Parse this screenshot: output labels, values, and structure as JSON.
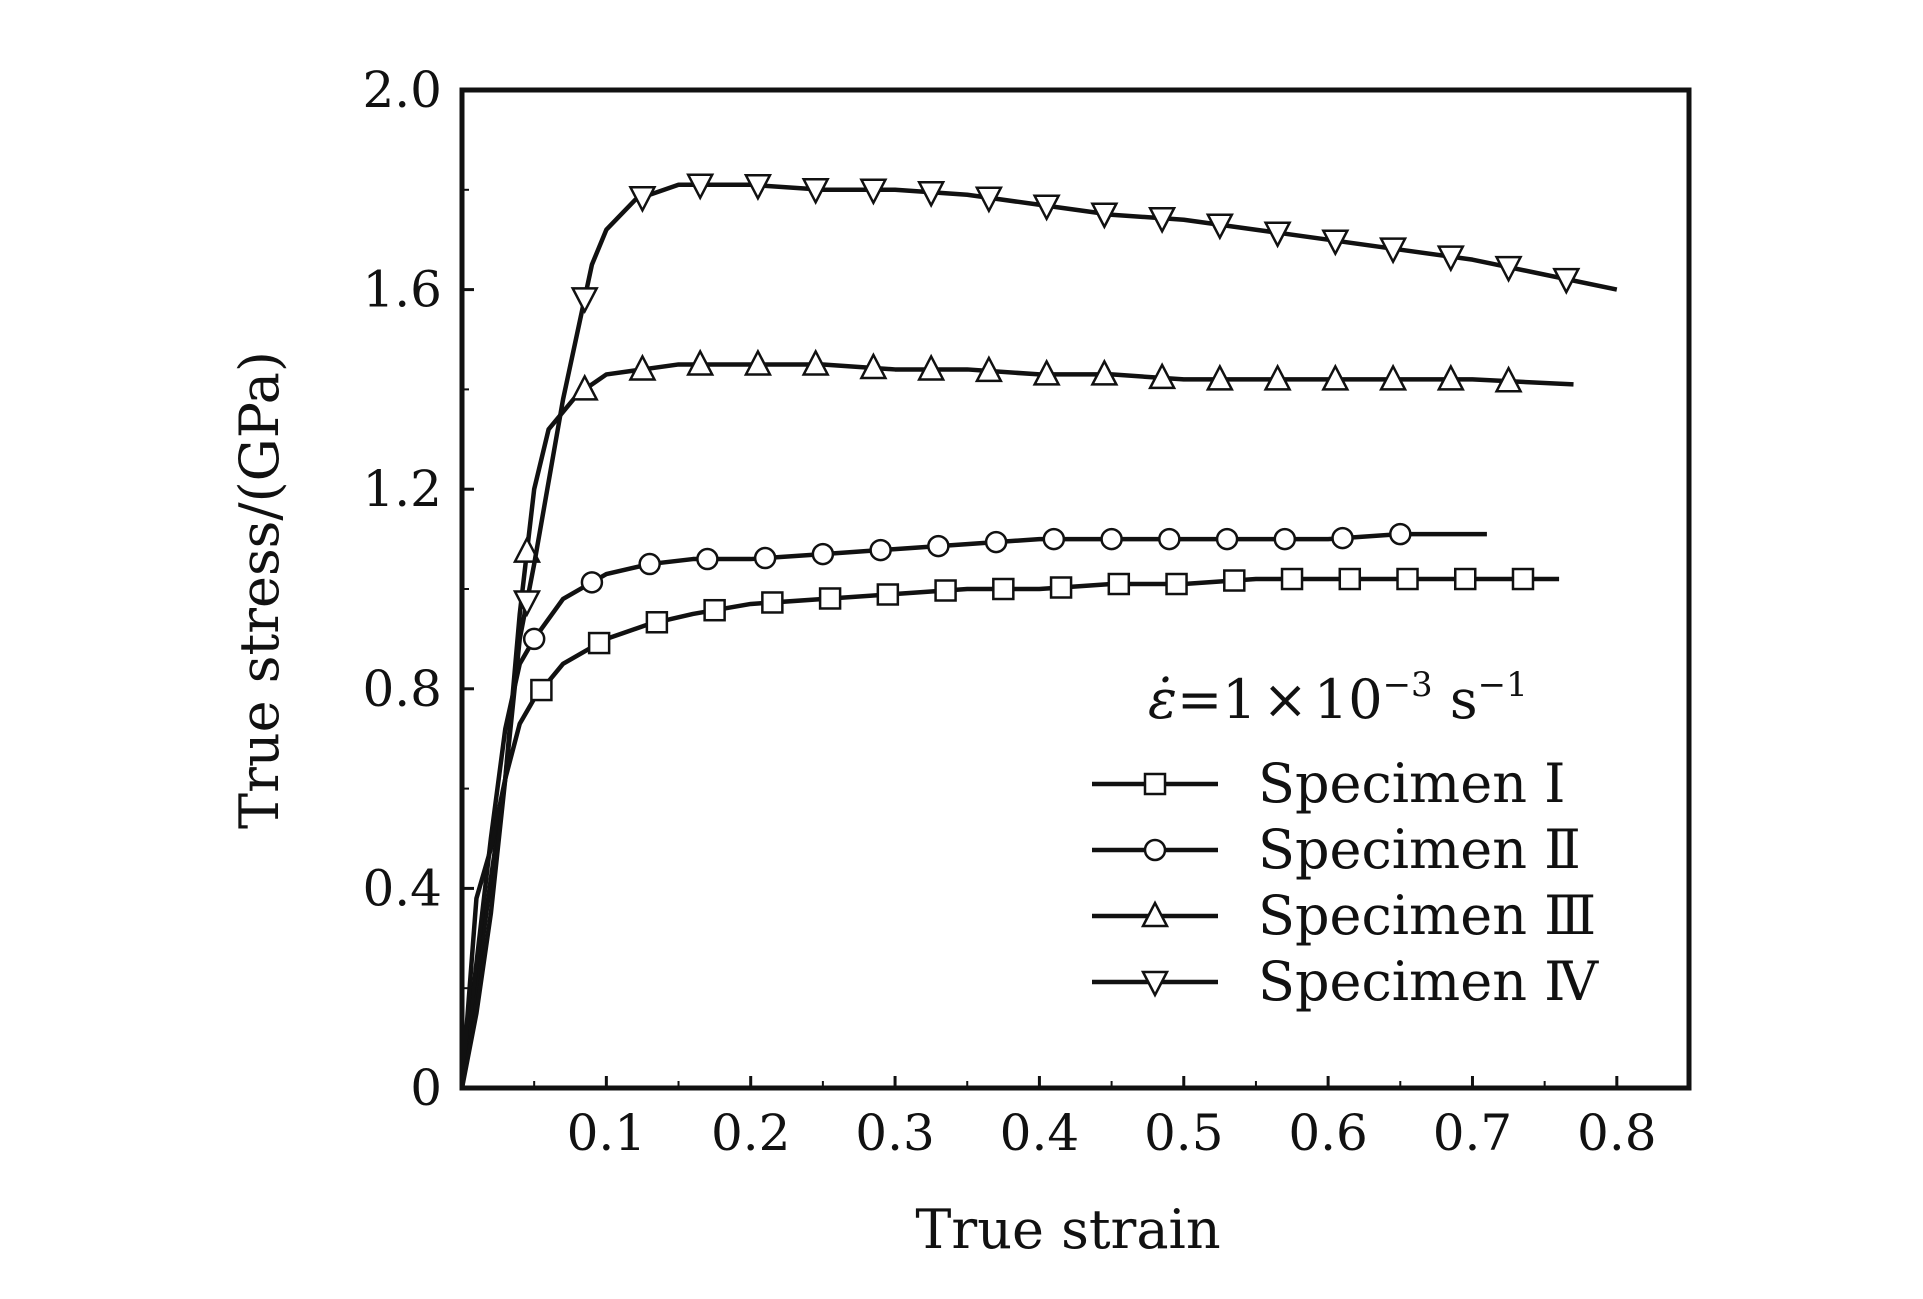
{
  "chart_data": {
    "type": "line",
    "title": "",
    "xlabel": "True strain",
    "ylabel": "True stress/(GPa)",
    "xlim": [
      0,
      0.85
    ],
    "ylim": [
      0,
      2.0
    ],
    "x_ticks": [
      0.1,
      0.2,
      0.3,
      0.4,
      0.5,
      0.6,
      0.7,
      0.8
    ],
    "x_tick_labels": [
      "0.1",
      "0.2",
      "0.3",
      "0.4",
      "0.5",
      "0.6",
      "0.7",
      "0.8"
    ],
    "y_ticks": [
      0,
      0.4,
      0.8,
      1.2,
      1.6,
      2.0
    ],
    "y_tick_labels": [
      "0",
      "0.4",
      "0.8",
      "1.2",
      "1.6",
      "2.0"
    ],
    "grid": false,
    "legend_position": "bottom-right",
    "annotation": {
      "symbol": "ε̇",
      "equals": "=1",
      "times": "×",
      "base": "10",
      "exp1": "−3",
      "unit": " s",
      "exp2": "−1"
    },
    "series": [
      {
        "name": "Specimen Ⅰ",
        "marker": "square",
        "x": [
          0,
          0.01,
          0.02,
          0.03,
          0.04,
          0.05,
          0.07,
          0.1,
          0.13,
          0.16,
          0.2,
          0.25,
          0.3,
          0.35,
          0.4,
          0.45,
          0.5,
          0.55,
          0.6,
          0.65,
          0.7,
          0.76
        ],
        "y": [
          0,
          0.2,
          0.42,
          0.62,
          0.73,
          0.78,
          0.85,
          0.9,
          0.93,
          0.95,
          0.97,
          0.98,
          0.99,
          1.0,
          1.0,
          1.01,
          1.01,
          1.02,
          1.02,
          1.02,
          1.02,
          1.02
        ]
      },
      {
        "name": "Specimen Ⅱ",
        "marker": "circle",
        "x": [
          0,
          0.01,
          0.02,
          0.03,
          0.04,
          0.05,
          0.07,
          0.1,
          0.13,
          0.16,
          0.2,
          0.25,
          0.3,
          0.35,
          0.4,
          0.45,
          0.5,
          0.55,
          0.6,
          0.65,
          0.71
        ],
        "y": [
          0,
          0.25,
          0.5,
          0.72,
          0.85,
          0.9,
          0.98,
          1.03,
          1.05,
          1.06,
          1.06,
          1.07,
          1.08,
          1.09,
          1.1,
          1.1,
          1.1,
          1.1,
          1.1,
          1.11,
          1.11
        ]
      },
      {
        "name": "Specimen Ⅲ",
        "marker": "triangle-up",
        "x": [
          0,
          0.01,
          0.02,
          0.03,
          0.04,
          0.05,
          0.06,
          0.08,
          0.1,
          0.15,
          0.2,
          0.25,
          0.3,
          0.35,
          0.4,
          0.45,
          0.5,
          0.55,
          0.6,
          0.65,
          0.7,
          0.77
        ],
        "y": [
          0,
          0.38,
          0.48,
          0.62,
          0.95,
          1.2,
          1.32,
          1.39,
          1.43,
          1.45,
          1.45,
          1.45,
          1.44,
          1.44,
          1.43,
          1.43,
          1.42,
          1.42,
          1.42,
          1.42,
          1.42,
          1.41
        ]
      },
      {
        "name": "Specimen Ⅳ",
        "marker": "triangle-down",
        "x": [
          0,
          0.01,
          0.02,
          0.03,
          0.04,
          0.05,
          0.07,
          0.09,
          0.1,
          0.12,
          0.15,
          0.2,
          0.25,
          0.3,
          0.35,
          0.4,
          0.45,
          0.5,
          0.55,
          0.6,
          0.65,
          0.7,
          0.75,
          0.8
        ],
        "y": [
          0,
          0.15,
          0.35,
          0.62,
          0.9,
          1.05,
          1.38,
          1.65,
          1.72,
          1.78,
          1.81,
          1.81,
          1.8,
          1.8,
          1.79,
          1.77,
          1.75,
          1.74,
          1.72,
          1.7,
          1.68,
          1.66,
          1.63,
          1.6
        ]
      }
    ],
    "colors": {
      "line": "#111111",
      "marker_fill": "#ffffff"
    }
  }
}
